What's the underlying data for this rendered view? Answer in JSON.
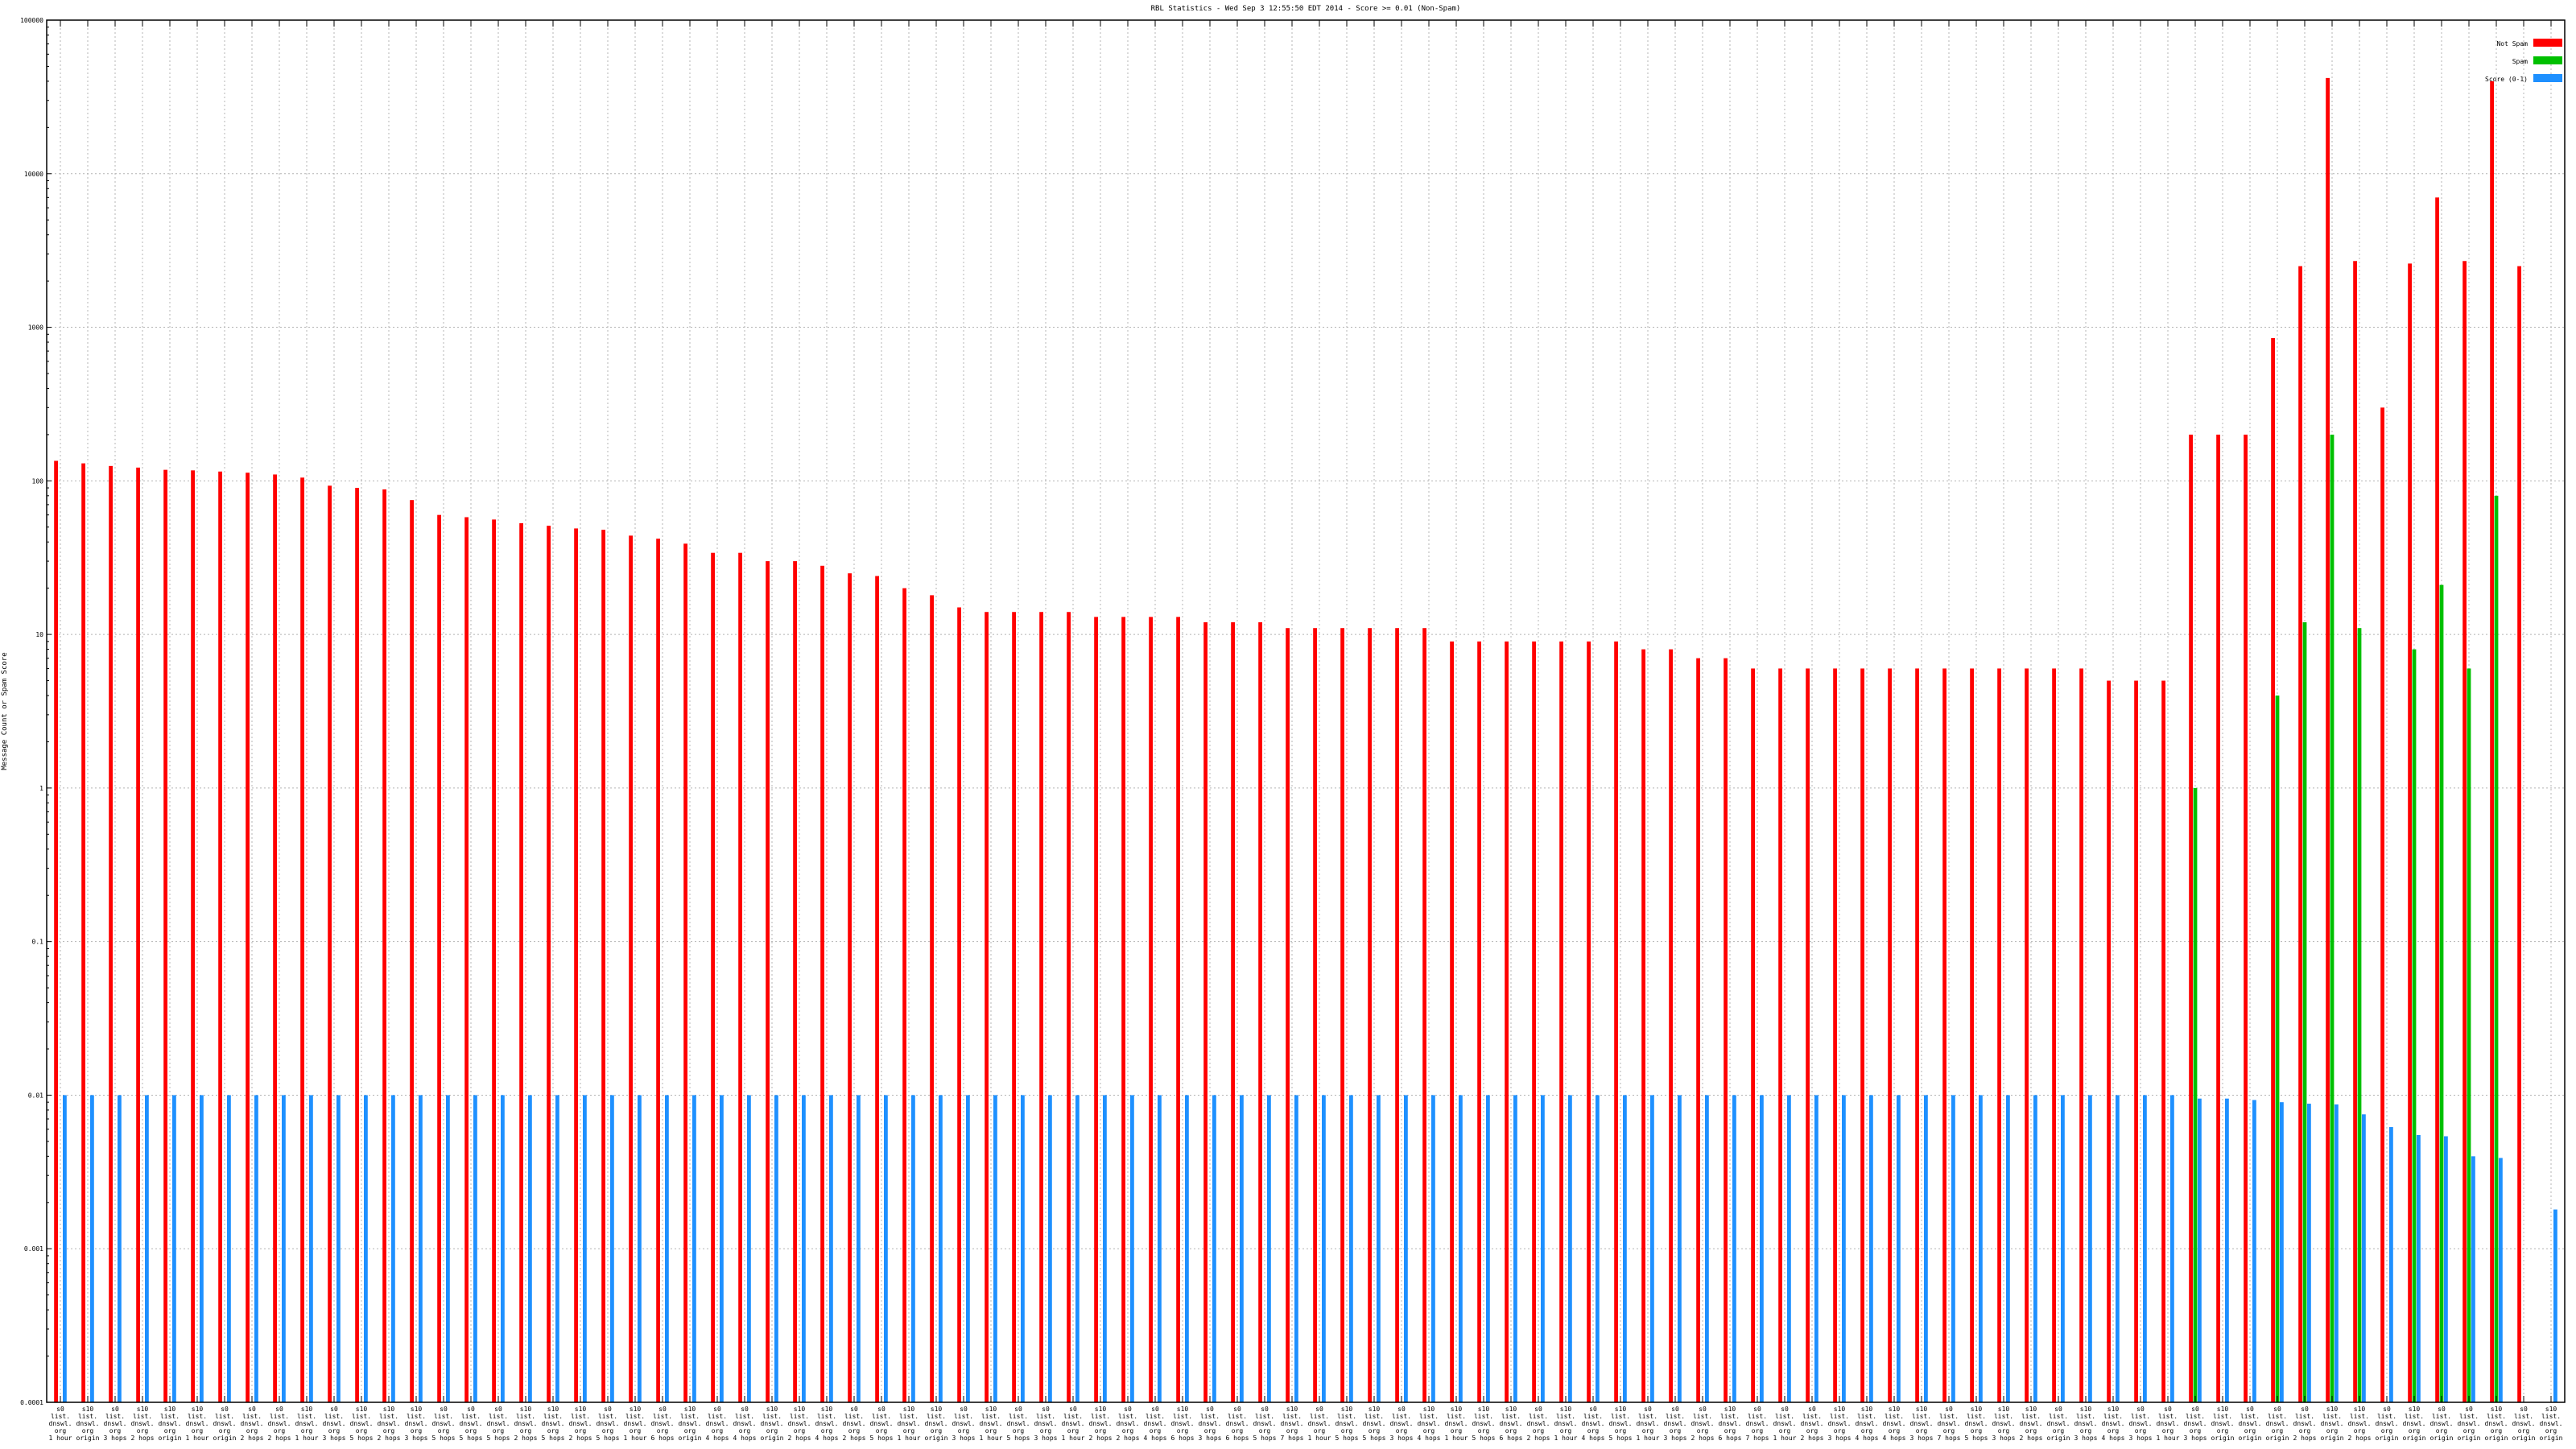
{
  "chart_data": {
    "type": "bar",
    "title": "RBL Statistics - Wed Sep  3 12:55:50 EDT 2014 - Score >= 0.01 (Non-Spam)",
    "xlabel": "",
    "ylabel": "Message Count or Spam Score",
    "y_scale": "log",
    "ylim": [
      0.0001,
      100000
    ],
    "y_ticks": [
      0.0001,
      0.001,
      0.01,
      0.1,
      1,
      10,
      100,
      1000,
      10000,
      100000
    ],
    "y_tick_labels": [
      "0.0001",
      "0.001",
      "0.01",
      "0.1",
      "1",
      "10",
      "100",
      "1000",
      "10000",
      "100000"
    ],
    "grid": true,
    "legend_position": "top-right",
    "colors": {
      "Not Spam": "#ff0000",
      "Spam": "#00c000",
      "Score": "#1e90ff"
    },
    "categories": [
      "s0|list.|dnswl.|org|1 hour",
      "s10|list.|dnswl.|org|origin",
      "s0|list.|dnswl.|org|3 hops",
      "s10|list.|dnswl.|org|2 hops",
      "s10|list.|dnswl.|org|origin",
      "s10|list.|dnswl.|org|1 hour",
      "s0|list.|dnswl.|org|origin",
      "s0|list.|dnswl.|org|2 hops",
      "s0|list.|dnswl.|org|2 hops",
      "s10|list.|dnswl.|org|1 hour",
      "s0|list.|dnswl.|org|3 hops",
      "s10|list.|dnswl.|org|5 hops",
      "s10|list.|dnswl.|org|2 hops",
      "s10|list.|dnswl.|org|3 hops",
      "s0|list.|dnswl.|org|5 hops",
      "s0|list.|dnswl.|org|5 hops",
      "s0|list.|dnswl.|org|5 hops",
      "s10|list.|dnswl.|org|2 hops",
      "s10|list.|dnswl.|org|5 hops",
      "s10|list.|dnswl.|org|2 hops",
      "s0|list.|dnswl.|org|5 hops",
      "s10|list.|dnswl.|org|1 hour",
      "s0|list.|dnswl.|org|6 hops",
      "s10|list.|dnswl.|org|origin",
      "s0|list.|dnswl.|org|4 hops",
      "s0|list.|dnswl.|org|4 hops",
      "s10|list.|dnswl.|org|origin",
      "s10|list.|dnswl.|org|2 hops",
      "s10|list.|dnswl.|org|4 hops",
      "s0|list.|dnswl.|org|2 hops",
      "s0|list.|dnswl.|org|5 hops",
      "s10|list.|dnswl.|org|1 hour",
      "s10|list.|dnswl.|org|origin",
      "s0|list.|dnswl.|org|3 hops",
      "s10|list.|dnswl.|org|1 hour",
      "s0|list.|dnswl.|org|5 hops",
      "s0|list.|dnswl.|org|3 hops",
      "s0|list.|dnswl.|org|1 hour",
      "s10|list.|dnswl.|org|2 hops",
      "s0|list.|dnswl.|org|2 hops",
      "s0|list.|dnswl.|org|4 hops",
      "s10|list.|dnswl.|org|6 hops",
      "s0|list.|dnswl.|org|3 hops",
      "s0|list.|dnswl.|org|6 hops",
      "s0|list.|dnswl.|org|5 hops",
      "s10|list.|dnswl.|org|7 hops",
      "s0|list.|dnswl.|org|1 hour",
      "s10|list.|dnswl.|org|5 hops",
      "s10|list.|dnswl.|org|5 hops",
      "s0|list.|dnswl.|org|3 hops",
      "s10|list.|dnswl.|org|4 hops",
      "s10|list.|dnswl.|org|1 hour",
      "s10|list.|dnswl.|org|5 hops",
      "s10|list.|dnswl.|org|6 hops",
      "s0|list.|dnswl.|org|2 hops",
      "s10|list.|dnswl.|org|1 hour",
      "s0|list.|dnswl.|org|4 hops",
      "s10|list.|dnswl.|org|5 hops",
      "s0|list.|dnswl.|org|1 hour",
      "s0|list.|dnswl.|org|3 hops",
      "s0|list.|dnswl.|org|2 hops",
      "s10|list.|dnswl.|org|6 hops",
      "s0|list.|dnswl.|org|7 hops",
      "s0|list.|dnswl.|org|1 hour",
      "s0|list.|dnswl.|org|2 hops",
      "s10|list.|dnswl.|org|3 hops",
      "s10|list.|dnswl.|org|4 hops",
      "s10|list.|dnswl.|org|4 hops",
      "s10|list.|dnswl.|org|3 hops",
      "s0|list.|dnswl.|org|7 hops",
      "s10|list.|dnswl.|org|5 hops",
      "s10|list.|dnswl.|org|3 hops",
      "s10|list.|dnswl.|org|2 hops",
      "s0|list.|dnswl.|org|origin",
      "s10|list.|dnswl.|org|3 hops",
      "s10|list.|dnswl.|org|4 hops",
      "s0|list.|dnswl.|org|3 hops",
      "s0|list.|dnswl.|org|1 hour",
      "s0|list.|dnswl.|org|3 hops",
      "s10|list.|dnswl.|org|origin",
      "s0|list.|dnswl.|org|origin",
      "s0|list.|dnswl.|org|origin",
      "s0|list.|dnswl.|org|2 hops",
      "s10|list.|dnswl.|org|origin",
      "s10|list.|dnswl.|org|2 hops",
      "s0|list.|dnswl.|org|origin",
      "s10|list.|dnswl.|org|origin",
      "s0|list.|dnswl.|org|origin",
      "s0|list.|dnswl.|org|origin",
      "s10|list.|dnswl.|org|origin",
      "s0|list.|dnswl.|org|origin",
      "s10|list.|dnswl.|org|origin"
    ],
    "series": [
      {
        "name": "Not Spam",
        "values": [
          135,
          130,
          125,
          122,
          118,
          117,
          115,
          113,
          110,
          105,
          93,
          90,
          88,
          75,
          60,
          58,
          56,
          53,
          51,
          49,
          48,
          44,
          42,
          39,
          34,
          34,
          30,
          30,
          28,
          25,
          24,
          20,
          18,
          15,
          14,
          14,
          14,
          14,
          13,
          13,
          13,
          13,
          12,
          12,
          12,
          11,
          11,
          11,
          11,
          11,
          11,
          9,
          9,
          9,
          9,
          9,
          9,
          9,
          8,
          8,
          7,
          7,
          6,
          6,
          6,
          6,
          6,
          6,
          6,
          6,
          6,
          6,
          6,
          6,
          6,
          5,
          5,
          5,
          200,
          200,
          200,
          850,
          2500,
          42000,
          2700,
          300,
          2600,
          7000,
          2700,
          40000,
          2500,
          0
        ]
      },
      {
        "name": "Spam",
        "values": [
          0,
          0,
          0,
          0,
          0,
          0,
          0,
          0,
          0,
          0,
          0,
          0,
          0,
          0,
          0,
          0,
          0,
          0,
          0,
          0,
          0,
          0,
          0,
          0,
          0,
          0,
          0,
          0,
          0,
          0,
          0,
          0,
          0,
          0,
          0,
          0,
          0,
          0,
          0,
          0,
          0,
          0,
          0,
          0,
          0,
          0,
          0,
          0,
          0,
          0,
          0,
          0,
          0,
          0,
          0,
          0,
          0,
          0,
          0,
          0,
          0,
          0,
          0,
          0,
          0,
          0,
          0,
          0,
          0,
          0,
          0,
          0,
          0,
          0,
          0,
          0,
          0,
          0,
          1,
          0,
          0,
          4,
          12,
          200,
          11,
          0,
          8,
          21,
          6,
          80,
          0,
          0
        ]
      },
      {
        "name": "Score (0-1)",
        "values": [
          0.01,
          0.01,
          0.01,
          0.01,
          0.01,
          0.01,
          0.01,
          0.01,
          0.01,
          0.01,
          0.01,
          0.01,
          0.01,
          0.01,
          0.01,
          0.01,
          0.01,
          0.01,
          0.01,
          0.01,
          0.01,
          0.01,
          0.01,
          0.01,
          0.01,
          0.01,
          0.01,
          0.01,
          0.01,
          0.01,
          0.01,
          0.01,
          0.01,
          0.01,
          0.01,
          0.01,
          0.01,
          0.01,
          0.01,
          0.01,
          0.01,
          0.01,
          0.01,
          0.01,
          0.01,
          0.01,
          0.01,
          0.01,
          0.01,
          0.01,
          0.01,
          0.01,
          0.01,
          0.01,
          0.01,
          0.01,
          0.01,
          0.01,
          0.01,
          0.01,
          0.01,
          0.01,
          0.01,
          0.01,
          0.01,
          0.01,
          0.01,
          0.01,
          0.01,
          0.01,
          0.01,
          0.01,
          0.01,
          0.01,
          0.01,
          0.01,
          0.01,
          0.01,
          0.0095,
          0.0095,
          0.0093,
          0.009,
          0.0088,
          0.0087,
          0.0075,
          0.0062,
          0.0055,
          0.0054,
          0.004,
          0.0039,
          0,
          0.0018
        ]
      }
    ]
  }
}
